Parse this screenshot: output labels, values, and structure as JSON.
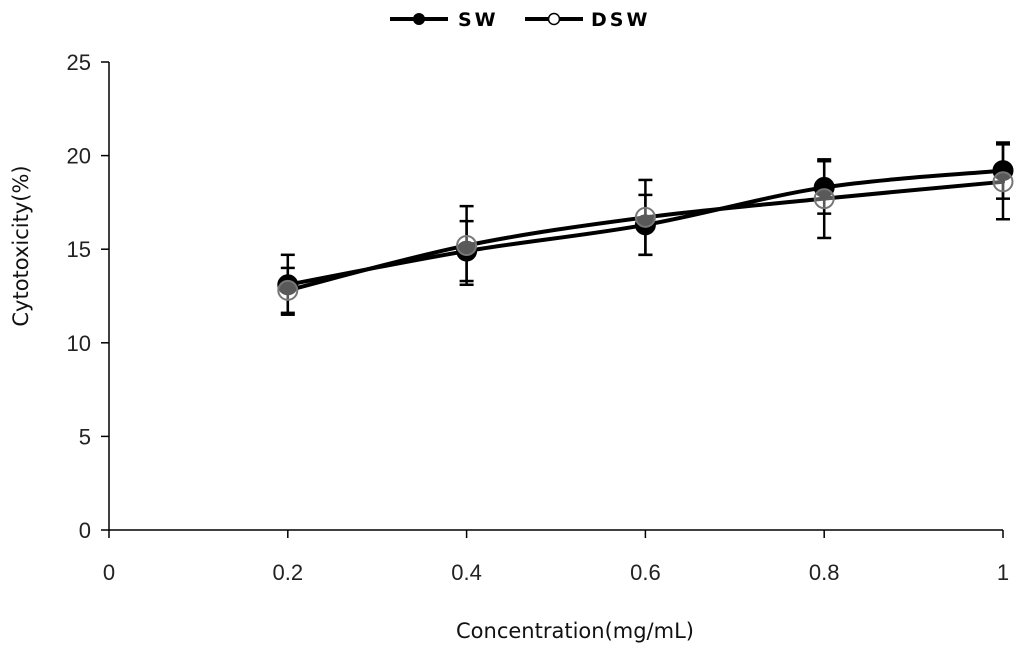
{
  "chart_data": {
    "type": "line",
    "title": "",
    "xlabel": "Concentration(mg/mL)",
    "ylabel": "Cytotoxicity(%)",
    "xlim": [
      0,
      1
    ],
    "ylim": [
      0,
      25
    ],
    "x_ticks": [
      0,
      0.2,
      0.4,
      0.6,
      0.8,
      1
    ],
    "x_tick_labels": [
      "0",
      "0.2",
      "0.4",
      "0.6",
      "0.8",
      "1"
    ],
    "y_ticks": [
      0,
      5,
      10,
      15,
      20,
      25
    ],
    "y_tick_labels": [
      "0",
      "5",
      "10",
      "15",
      "20",
      "25"
    ],
    "grid": false,
    "legend_position": "top-center",
    "x": [
      0.2,
      0.4,
      0.6,
      0.8,
      1.0
    ],
    "series": [
      {
        "name": "SW",
        "marker": "filled-circle",
        "color": "#000000",
        "values": [
          13.1,
          14.9,
          16.3,
          18.3,
          19.2
        ],
        "errors": [
          1.6,
          1.6,
          1.6,
          1.4,
          1.5
        ]
      },
      {
        "name": "DSW",
        "marker": "open-circle",
        "color": "#000000",
        "values": [
          12.8,
          15.2,
          16.7,
          17.7,
          18.6
        ],
        "errors": [
          1.2,
          2.1,
          2.0,
          2.1,
          2.0
        ]
      }
    ]
  }
}
